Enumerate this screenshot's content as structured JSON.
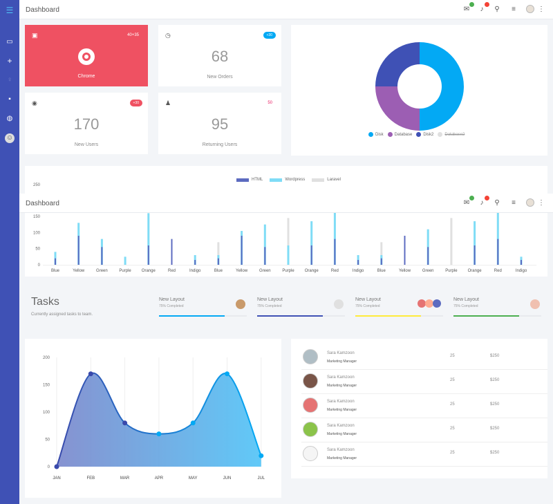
{
  "app": {
    "title": "Dashboard"
  },
  "topbar": {
    "mail_badge_color": "#4caf50",
    "bell_badge_color": "#f44336"
  },
  "sidebar": {
    "items": [
      "menu",
      "inbox",
      "add",
      "bulb",
      "chat",
      "apps",
      "profile"
    ]
  },
  "stats": [
    {
      "label": "Chrome",
      "badge": "40+35",
      "icon": "chrome-icon",
      "color": "#ef5162"
    },
    {
      "label": "New Orders",
      "value": "68",
      "badge": "+30",
      "badge_color": "#03a9f4"
    },
    {
      "label": "New Users",
      "value": "170",
      "badge": "+30",
      "badge_color": "#ef5162"
    },
    {
      "label": "Returning Users",
      "value": "95",
      "badge": "50",
      "badge_color": "#e91e63"
    }
  ],
  "donut": {
    "legend": [
      {
        "name": "Disk",
        "color": "#03a9f4",
        "value": 50
      },
      {
        "name": "Database",
        "color": "#9c5eb3",
        "value": 25
      },
      {
        "name": "Disk2",
        "color": "#3f51b5",
        "value": 25
      },
      {
        "name": "Database2",
        "color": "#e0e0e0",
        "value": 0
      }
    ]
  },
  "bar_chart": {
    "legend": [
      {
        "name": "HTML",
        "color": "#5c6bc0"
      },
      {
        "name": "Wordpress",
        "color": "#7fdcf6"
      },
      {
        "name": "Laravel",
        "color": "#e0e0e0"
      }
    ],
    "y_top_label": "250",
    "y_ticks": [
      "150",
      "100",
      "50",
      "0"
    ],
    "categories": [
      "Blue",
      "Yellow",
      "Green",
      "Purple",
      "Orange",
      "Red",
      "Indigo",
      "Blue",
      "Yellow",
      "Green",
      "Purple",
      "Orange",
      "Red",
      "Indigo",
      "Blue",
      "Yellow",
      "Green",
      "Purple",
      "Orange",
      "Red",
      "Indigo"
    ]
  },
  "chart_data": [
    {
      "type": "bar",
      "title": "",
      "categories": [
        "Blue",
        "Yellow",
        "Green",
        "Purple",
        "Orange",
        "Red",
        "Indigo",
        "Blue",
        "Yellow",
        "Green",
        "Purple",
        "Orange",
        "Red",
        "Indigo",
        "Blue",
        "Yellow",
        "Green",
        "Purple",
        "Orange",
        "Red",
        "Indigo"
      ],
      "series": [
        {
          "name": "HTML",
          "values": [
            20,
            90,
            55,
            0,
            60,
            80,
            15,
            20,
            90,
            55,
            0,
            60,
            80,
            15,
            20,
            90,
            55,
            0,
            60,
            80,
            15
          ]
        },
        {
          "name": "Wordpress",
          "values": [
            40,
            130,
            80,
            25,
            160,
            0,
            30,
            30,
            105,
            125,
            60,
            135,
            175,
            30,
            30,
            0,
            110,
            0,
            135,
            170,
            25
          ]
        },
        {
          "name": "Laravel",
          "values": [
            0,
            0,
            0,
            0,
            0,
            0,
            0,
            70,
            0,
            0,
            145,
            0,
            0,
            0,
            70,
            0,
            0,
            145,
            0,
            0,
            0
          ]
        }
      ],
      "ylim": [
        0,
        250
      ]
    },
    {
      "type": "area",
      "x": [
        "JAN",
        "FEB",
        "MAR",
        "APR",
        "MAY",
        "JUN",
        "JUL"
      ],
      "values": [
        0,
        170,
        80,
        60,
        80,
        170,
        20
      ],
      "ylim": [
        0,
        200
      ],
      "y_ticks": [
        "200",
        "150",
        "100",
        "50",
        "0"
      ]
    }
  ],
  "tasks": {
    "title": "Tasks",
    "subtitle": "Currently assigned tasks to team.",
    "items": [
      {
        "title": "New Layout",
        "sub": "75% Completed",
        "color": "#03a9f4",
        "progress": 0.75
      },
      {
        "title": "New Layout",
        "sub": "75% Completed",
        "color": "#3f51b5",
        "progress": 0.75
      },
      {
        "title": "New Layout",
        "sub": "75% Completed",
        "color": "#ffeb3b",
        "progress": 0.75
      },
      {
        "title": "New Layout",
        "sub": "75% Completed",
        "color": "#4caf50",
        "progress": 0.75
      }
    ]
  },
  "people": [
    {
      "name": "Sara Kamzoon",
      "role": "Marketing Manager",
      "qty": "25",
      "price": "$250"
    },
    {
      "name": "Sara Kamzoon",
      "role": "Marketing Manager",
      "qty": "25",
      "price": "$250"
    },
    {
      "name": "Sara Kamzoon",
      "role": "Marketing Manager",
      "qty": "25",
      "price": "$250"
    },
    {
      "name": "Sara Kamzoon",
      "role": "Marketing Manager",
      "qty": "25",
      "price": "$250"
    },
    {
      "name": "Sara Kamzoon",
      "role": "Marketing Manager",
      "qty": "25",
      "price": "$250"
    }
  ]
}
